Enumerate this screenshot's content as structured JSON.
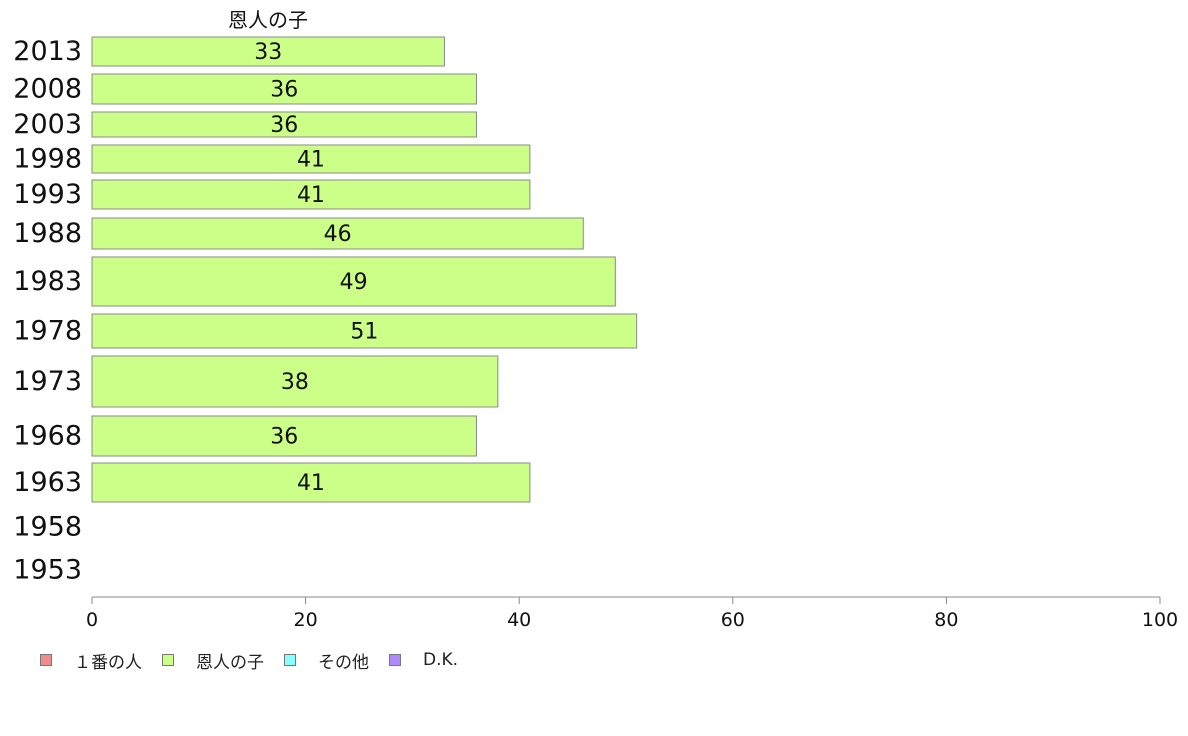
{
  "chart_data": {
    "type": "bar",
    "orientation": "horizontal",
    "title": "恩人の子",
    "categories": [
      "2013",
      "2008",
      "2003",
      "1998",
      "1993",
      "1988",
      "1983",
      "1978",
      "1973",
      "1968",
      "1963",
      "1958",
      "1953"
    ],
    "series": [
      {
        "name": "恩人の子",
        "color": "#ccff88",
        "values": [
          33,
          36,
          36,
          41,
          41,
          46,
          49,
          51,
          38,
          36,
          41,
          null,
          null
        ],
        "label_values": [
          "33",
          "36",
          "36",
          "41",
          "41",
          "46",
          "49",
          "51",
          "38",
          "36",
          "41",
          "",
          ""
        ]
      }
    ],
    "xlim": [
      0,
      100
    ],
    "xticks": [
      "0",
      "20",
      "40",
      "60",
      "80",
      "100"
    ],
    "grid": false,
    "legend": {
      "placement": "bottom-left",
      "items": [
        {
          "label": "１番の人",
          "color": "#f08c8c"
        },
        {
          "label": "恩人の子",
          "color": "#ccff88"
        },
        {
          "label": "その他",
          "color": "#88ffff"
        },
        {
          "label": "D.K.",
          "color": "#b388ff"
        }
      ]
    }
  }
}
